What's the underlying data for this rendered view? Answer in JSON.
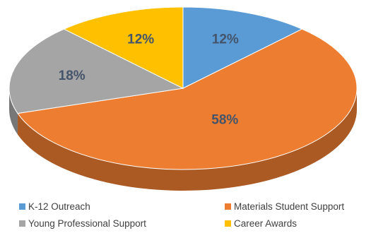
{
  "chart_data": {
    "type": "pie",
    "categories": [
      "K-12 Outreach",
      "Materials Student Support",
      "Young Professional Support",
      "Career Awards"
    ],
    "values": [
      12,
      58,
      18,
      12
    ],
    "labels": [
      "12%",
      "58%",
      "18%",
      "12%"
    ],
    "colors": [
      "#5B9BD5",
      "#ED7D31",
      "#A5A5A5",
      "#FFC000"
    ],
    "label_colors": [
      "#44546A",
      "#44546A",
      "#44546A",
      "#44546A"
    ],
    "title": "",
    "legend_position": "bottom",
    "style": "3d"
  }
}
